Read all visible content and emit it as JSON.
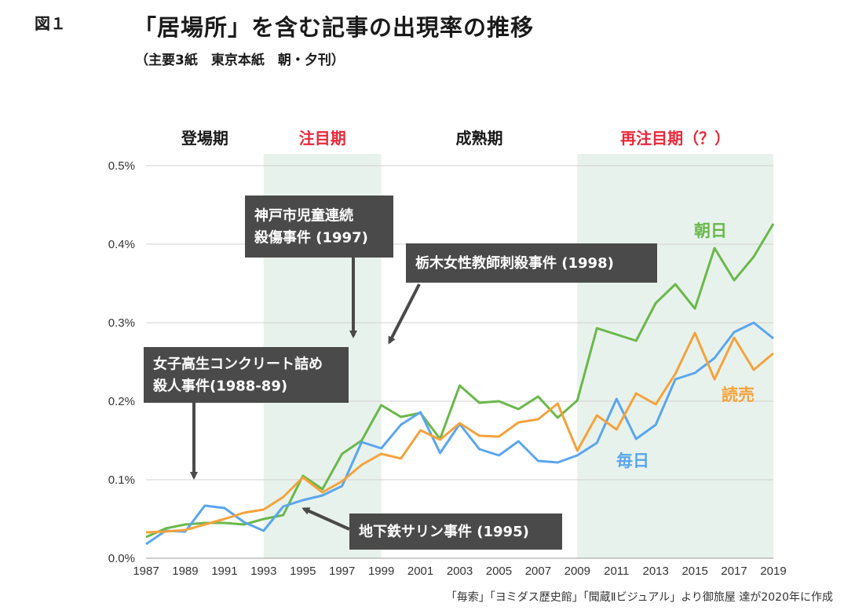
{
  "figure_label": "図１",
  "title": "「居場所」を含む記事の出現率の推移",
  "subtitle": "（主要3紙　東京本紙　朝・夕刊）",
  "source": "「毎索」「ヨミダス歴史館」「聞蔵Ⅱビジュアル」より御旅屋 達が2020年に作成",
  "colors": {
    "asahi": "#6ab84a",
    "mainichi": "#5aa5ee",
    "yomiuri": "#f5a23c",
    "shade": "#e8f2ec",
    "grid": "#d0d0d0",
    "annotation_bg": "#4a4a4a",
    "highlight_red": "#e8283a"
  },
  "periods": [
    {
      "label": "登場期",
      "from": 1987,
      "to": 1993,
      "shaded": false,
      "highlight": false
    },
    {
      "label": "注目期",
      "from": 1993,
      "to": 1999,
      "shaded": true,
      "highlight": true
    },
    {
      "label": "成熟期",
      "from": 1999,
      "to": 2009,
      "shaded": false,
      "highlight": false
    },
    {
      "label": "再注目期（？）",
      "from": 2009,
      "to": 2019,
      "shaded": true,
      "highlight": true
    }
  ],
  "annotations": [
    {
      "lines": [
        "神戸市児童連続",
        "殺傷事件 (1997)"
      ],
      "event_year": 1997
    },
    {
      "lines": [
        "栃木女性教師刺殺事件 (1998)"
      ],
      "event_year": 1998
    },
    {
      "lines": [
        "女子高生コンクリート詰め",
        "殺人事件(1988-89)"
      ],
      "event_year": 1989
    },
    {
      "lines": [
        "地下鉄サリン事件 (1995)"
      ],
      "event_year": 1995
    }
  ],
  "chart_data": {
    "type": "line",
    "x": [
      1987,
      1988,
      1989,
      1990,
      1991,
      1992,
      1993,
      1994,
      1995,
      1996,
      1997,
      1998,
      1999,
      2000,
      2001,
      2002,
      2003,
      2004,
      2005,
      2006,
      2007,
      2008,
      2009,
      2010,
      2011,
      2012,
      2013,
      2014,
      2015,
      2016,
      2017,
      2018,
      2019
    ],
    "x_tick_labels": [
      "1987",
      "1989",
      "1991",
      "1993",
      "1995",
      "1997",
      "1999",
      "2001",
      "2003",
      "2005",
      "2007",
      "2009",
      "2011",
      "2013",
      "2015",
      "2017",
      "2019"
    ],
    "y_tick_labels": [
      "0.0%",
      "0.1%",
      "0.2%",
      "0.3%",
      "0.4%",
      "0.5%"
    ],
    "ylim": [
      0,
      0.5
    ],
    "y_unit": "%",
    "grid": true,
    "series": [
      {
        "name": "朝日",
        "key": "asahi",
        "values": [
          0.027,
          0.038,
          0.043,
          0.045,
          0.045,
          0.043,
          0.05,
          0.055,
          0.105,
          0.088,
          0.133,
          0.15,
          0.195,
          0.18,
          0.185,
          0.152,
          0.22,
          0.198,
          0.2,
          0.19,
          0.206,
          0.179,
          0.201,
          0.293,
          0.285,
          0.277,
          0.325,
          0.349,
          0.318,
          0.395,
          0.354,
          0.384,
          0.426
        ]
      },
      {
        "name": "毎日",
        "key": "mainichi",
        "values": [
          0.018,
          0.035,
          0.034,
          0.067,
          0.064,
          0.046,
          0.035,
          0.066,
          0.074,
          0.08,
          0.092,
          0.148,
          0.14,
          0.17,
          0.186,
          0.134,
          0.171,
          0.139,
          0.131,
          0.149,
          0.124,
          0.122,
          0.131,
          0.147,
          0.203,
          0.152,
          0.17,
          0.228,
          0.236,
          0.255,
          0.288,
          0.3,
          0.28
        ]
      },
      {
        "name": "読売",
        "key": "yomiuri",
        "values": [
          0.033,
          0.034,
          0.036,
          0.043,
          0.05,
          0.058,
          0.062,
          0.078,
          0.103,
          0.084,
          0.098,
          0.119,
          0.133,
          0.127,
          0.163,
          0.151,
          0.172,
          0.156,
          0.155,
          0.173,
          0.177,
          0.197,
          0.137,
          0.182,
          0.164,
          0.21,
          0.196,
          0.235,
          0.287,
          0.228,
          0.281,
          0.24,
          0.261
        ]
      }
    ]
  }
}
